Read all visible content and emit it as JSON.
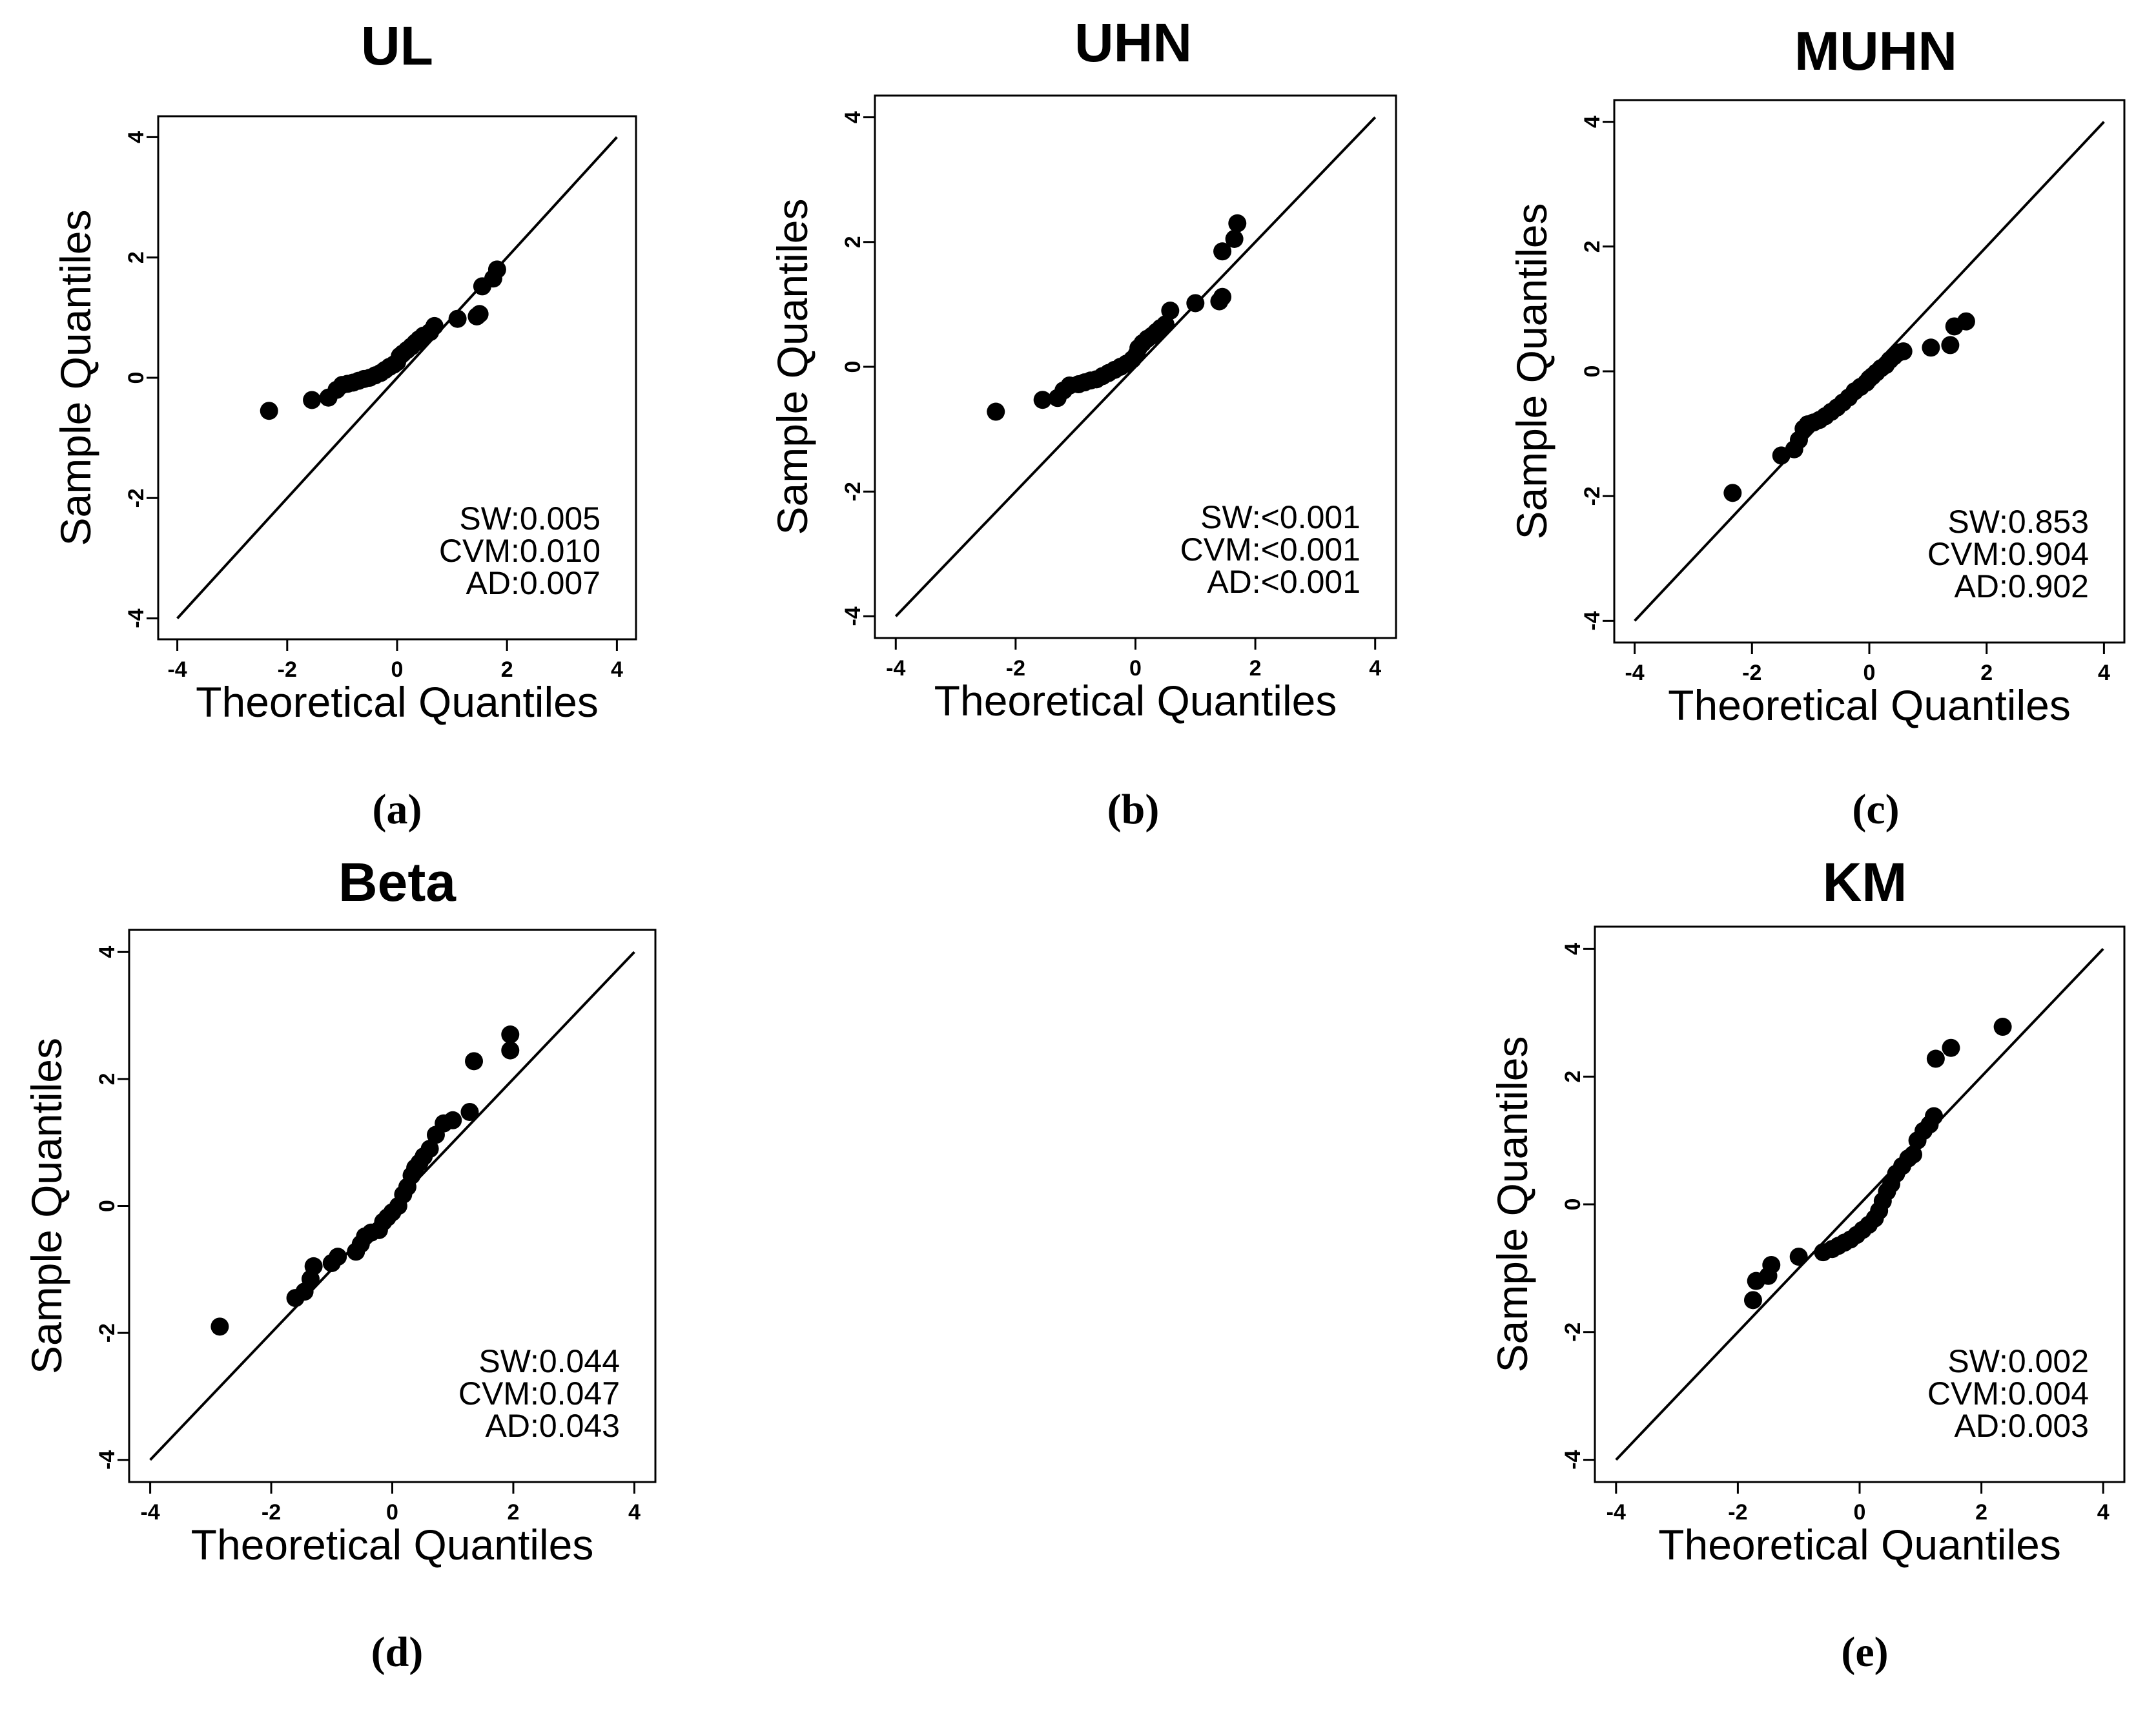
{
  "figure": {
    "panels": [
      {
        "caption": "(a)"
      },
      {
        "caption": "(b)"
      },
      {
        "caption": "(c)"
      },
      {
        "caption": "(d)"
      },
      {
        "caption": "(e)"
      }
    ]
  },
  "chart_data": [
    {
      "type": "scatter",
      "title": "UL",
      "xlabel": "Theoretical Quantiles",
      "ylabel": "Sample Quantiles",
      "xlim": [
        -4,
        4
      ],
      "ylim": [
        -4,
        4
      ],
      "xticks": [
        -4,
        -2,
        0,
        2,
        4
      ],
      "yticks": [
        -4,
        -2,
        0,
        2,
        4
      ],
      "reference_line": [
        [
          -4,
          -4
        ],
        [
          4,
          4
        ]
      ],
      "stats": [
        "SW:0.005",
        "CVM:0.010",
        "AD:0.007"
      ],
      "points": [
        [
          -2.33,
          -0.55
        ],
        [
          -1.55,
          -0.37
        ],
        [
          -1.25,
          -0.33
        ],
        [
          -1.1,
          -0.2
        ],
        [
          -1.0,
          -0.12
        ],
        [
          -0.9,
          -0.1
        ],
        [
          -0.8,
          -0.08
        ],
        [
          -0.7,
          -0.05
        ],
        [
          -0.6,
          -0.02
        ],
        [
          -0.5,
          0.0
        ],
        [
          -0.4,
          0.04
        ],
        [
          -0.3,
          0.08
        ],
        [
          -0.22,
          0.13
        ],
        [
          -0.14,
          0.18
        ],
        [
          -0.06,
          0.22
        ],
        [
          0.0,
          0.26
        ],
        [
          0.05,
          0.36
        ],
        [
          0.1,
          0.4
        ],
        [
          0.18,
          0.46
        ],
        [
          0.26,
          0.52
        ],
        [
          0.33,
          0.58
        ],
        [
          0.4,
          0.64
        ],
        [
          0.48,
          0.7
        ],
        [
          0.6,
          0.76
        ],
        [
          0.68,
          0.86
        ],
        [
          1.1,
          0.98
        ],
        [
          1.45,
          1.02
        ],
        [
          1.5,
          1.06
        ],
        [
          1.55,
          1.52
        ],
        [
          1.75,
          1.65
        ],
        [
          1.82,
          1.8
        ]
      ]
    },
    {
      "type": "scatter",
      "title": "UHN",
      "xlabel": "Theoretical Quantiles",
      "ylabel": "Sample Quantiles",
      "xlim": [
        -4,
        4
      ],
      "ylim": [
        -4,
        4
      ],
      "xticks": [
        -4,
        -2,
        0,
        2,
        4
      ],
      "yticks": [
        -4,
        -2,
        0,
        2,
        4
      ],
      "reference_line": [
        [
          -4,
          -4
        ],
        [
          4,
          4
        ]
      ],
      "stats": [
        "SW:<0.001",
        "CVM:<0.001",
        "AD:<0.001"
      ],
      "points": [
        [
          -2.33,
          -0.72
        ],
        [
          -1.55,
          -0.53
        ],
        [
          -1.3,
          -0.5
        ],
        [
          -1.2,
          -0.38
        ],
        [
          -1.1,
          -0.3
        ],
        [
          -0.95,
          -0.28
        ],
        [
          -0.85,
          -0.25
        ],
        [
          -0.75,
          -0.22
        ],
        [
          -0.65,
          -0.2
        ],
        [
          -0.55,
          -0.15
        ],
        [
          -0.45,
          -0.1
        ],
        [
          -0.35,
          -0.05
        ],
        [
          -0.25,
          0.0
        ],
        [
          -0.15,
          0.05
        ],
        [
          -0.05,
          0.12
        ],
        [
          0.02,
          0.2
        ],
        [
          0.05,
          0.3
        ],
        [
          0.12,
          0.38
        ],
        [
          0.2,
          0.45
        ],
        [
          0.28,
          0.5
        ],
        [
          0.35,
          0.56
        ],
        [
          0.42,
          0.62
        ],
        [
          0.5,
          0.68
        ],
        [
          0.58,
          0.9
        ],
        [
          1.0,
          1.02
        ],
        [
          1.4,
          1.05
        ],
        [
          1.45,
          1.12
        ],
        [
          1.45,
          1.85
        ],
        [
          1.65,
          2.05
        ],
        [
          1.7,
          2.3
        ]
      ]
    },
    {
      "type": "scatter",
      "title": "MUHN",
      "xlabel": "Theoretical Quantiles",
      "ylabel": "Sample Quantiles",
      "xlim": [
        -4,
        4
      ],
      "ylim": [
        -4,
        4
      ],
      "xticks": [
        -4,
        -2,
        0,
        2,
        4
      ],
      "yticks": [
        -4,
        -2,
        0,
        2,
        4
      ],
      "reference_line": [
        [
          -4,
          -4
        ],
        [
          4,
          4
        ]
      ],
      "stats": [
        "SW:0.853",
        "CVM:0.904",
        "AD:0.902"
      ],
      "points": [
        [
          -2.33,
          -1.95
        ],
        [
          -1.5,
          -1.35
        ],
        [
          -1.28,
          -1.25
        ],
        [
          -1.2,
          -1.1
        ],
        [
          -1.12,
          -0.92
        ],
        [
          -1.05,
          -0.85
        ],
        [
          -0.95,
          -0.82
        ],
        [
          -0.85,
          -0.78
        ],
        [
          -0.75,
          -0.72
        ],
        [
          -0.65,
          -0.65
        ],
        [
          -0.55,
          -0.58
        ],
        [
          -0.45,
          -0.5
        ],
        [
          -0.35,
          -0.42
        ],
        [
          -0.25,
          -0.32
        ],
        [
          -0.15,
          -0.25
        ],
        [
          -0.05,
          -0.18
        ],
        [
          0.0,
          -0.12
        ],
        [
          0.05,
          -0.08
        ],
        [
          0.12,
          -0.02
        ],
        [
          0.2,
          0.05
        ],
        [
          0.28,
          0.1
        ],
        [
          0.35,
          0.18
        ],
        [
          0.42,
          0.24
        ],
        [
          0.5,
          0.3
        ],
        [
          0.58,
          0.32
        ],
        [
          1.05,
          0.38
        ],
        [
          1.38,
          0.42
        ],
        [
          1.45,
          0.72
        ],
        [
          1.65,
          0.8
        ]
      ]
    },
    {
      "type": "scatter",
      "title": "Beta",
      "xlabel": "Theoretical Quantiles",
      "ylabel": "Sample Quantiles",
      "xlim": [
        -4,
        4
      ],
      "ylim": [
        -4,
        4
      ],
      "xticks": [
        -4,
        -2,
        0,
        2,
        4
      ],
      "yticks": [
        -4,
        -2,
        0,
        2,
        4
      ],
      "reference_line": [
        [
          -4,
          -4
        ],
        [
          4,
          4
        ]
      ],
      "stats": [
        "SW:0.044",
        "CVM:0.047",
        "AD:0.043"
      ],
      "points": [
        [
          -2.85,
          -1.9
        ],
        [
          -1.6,
          -1.45
        ],
        [
          -1.45,
          -1.35
        ],
        [
          -1.35,
          -1.15
        ],
        [
          -1.3,
          -0.95
        ],
        [
          -1.0,
          -0.9
        ],
        [
          -0.9,
          -0.8
        ],
        [
          -0.6,
          -0.72
        ],
        [
          -0.52,
          -0.6
        ],
        [
          -0.45,
          -0.48
        ],
        [
          -0.35,
          -0.42
        ],
        [
          -0.22,
          -0.38
        ],
        [
          -0.15,
          -0.25
        ],
        [
          -0.08,
          -0.18
        ],
        [
          0.0,
          -0.1
        ],
        [
          0.1,
          0.0
        ],
        [
          0.18,
          0.18
        ],
        [
          0.25,
          0.3
        ],
        [
          0.32,
          0.48
        ],
        [
          0.38,
          0.6
        ],
        [
          0.45,
          0.68
        ],
        [
          0.52,
          0.78
        ],
        [
          0.62,
          0.9
        ],
        [
          0.72,
          1.12
        ],
        [
          0.85,
          1.3
        ],
        [
          1.0,
          1.35
        ],
        [
          1.28,
          1.48
        ],
        [
          1.35,
          2.28
        ],
        [
          1.95,
          2.45
        ],
        [
          1.95,
          2.7
        ]
      ]
    },
    {
      "type": "scatter",
      "title": "KM",
      "xlabel": "Theoretical Quantiles",
      "ylabel": "Sample Quantiles",
      "xlim": [
        -4,
        4
      ],
      "ylim": [
        -4,
        4
      ],
      "xticks": [
        -4,
        -2,
        0,
        2,
        4
      ],
      "yticks": [
        -4,
        -2,
        0,
        2,
        4
      ],
      "reference_line": [
        [
          -4,
          -4
        ],
        [
          4,
          4
        ]
      ],
      "stats": [
        "SW:0.002",
        "CVM:0.004",
        "AD:0.003"
      ],
      "points": [
        [
          -1.75,
          -1.5
        ],
        [
          -1.7,
          -1.2
        ],
        [
          -1.5,
          -1.12
        ],
        [
          -1.45,
          -0.95
        ],
        [
          -1.0,
          -0.82
        ],
        [
          -0.6,
          -0.75
        ],
        [
          -0.45,
          -0.7
        ],
        [
          -0.35,
          -0.65
        ],
        [
          -0.25,
          -0.6
        ],
        [
          -0.15,
          -0.55
        ],
        [
          -0.05,
          -0.48
        ],
        [
          0.05,
          -0.4
        ],
        [
          0.15,
          -0.32
        ],
        [
          0.25,
          -0.22
        ],
        [
          0.32,
          -0.1
        ],
        [
          0.38,
          0.05
        ],
        [
          0.45,
          0.2
        ],
        [
          0.52,
          0.32
        ],
        [
          0.6,
          0.48
        ],
        [
          0.7,
          0.6
        ],
        [
          0.8,
          0.72
        ],
        [
          0.88,
          0.78
        ],
        [
          0.95,
          1.0
        ],
        [
          1.05,
          1.15
        ],
        [
          1.15,
          1.25
        ],
        [
          1.22,
          1.38
        ],
        [
          1.25,
          2.28
        ],
        [
          1.5,
          2.45
        ],
        [
          2.35,
          2.78
        ]
      ]
    }
  ]
}
